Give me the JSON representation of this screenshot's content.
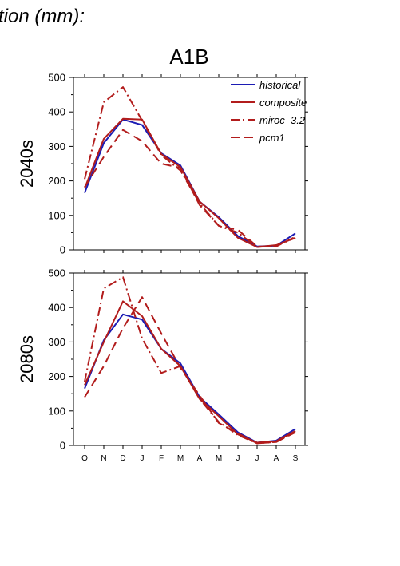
{
  "figure": {
    "header_text": "tion (mm):",
    "scenario_title": "A1B"
  },
  "chart_data": [
    {
      "type": "line",
      "panel_label": "2040s",
      "categories": [
        "O",
        "N",
        "D",
        "J",
        "F",
        "M",
        "A",
        "M",
        "J",
        "J",
        "A",
        "S"
      ],
      "ylim": [
        0,
        500
      ],
      "yticks": [
        0,
        100,
        200,
        300,
        400,
        500
      ],
      "grid": false,
      "legend_position": "top-right",
      "series": [
        {
          "name": "historical",
          "color": "#1c1cb4",
          "dash": "solid",
          "values": [
            165,
            310,
            378,
            362,
            280,
            245,
            140,
            95,
            40,
            10,
            12,
            48
          ]
        },
        {
          "name": "composite",
          "color": "#b21c1c",
          "dash": "solid",
          "values": [
            178,
            322,
            380,
            378,
            278,
            240,
            140,
            92,
            35,
            8,
            14,
            35
          ]
        },
        {
          "name": "miroc_3.2",
          "color": "#b21c1c",
          "dash": "dashdot",
          "values": [
            205,
            428,
            472,
            375,
            275,
            230,
            135,
            70,
            50,
            8,
            12,
            35
          ]
        },
        {
          "name": "pcm1",
          "color": "#b21c1c",
          "dash": "dash",
          "values": [
            182,
            270,
            348,
            315,
            250,
            238,
            130,
            70,
            58,
            10,
            10,
            38
          ]
        }
      ]
    },
    {
      "type": "line",
      "panel_label": "2080s",
      "categories": [
        "O",
        "N",
        "D",
        "J",
        "F",
        "M",
        "A",
        "M",
        "J",
        "J",
        "A",
        "S"
      ],
      "xlabels": [
        "O",
        "N",
        "D",
        "J",
        "F",
        "M",
        "A",
        "M",
        "J",
        "J",
        "A",
        "S"
      ],
      "ylim": [
        0,
        500
      ],
      "yticks": [
        0,
        100,
        200,
        300,
        400,
        500
      ],
      "grid": false,
      "series": [
        {
          "name": "historical",
          "color": "#1c1cb4",
          "dash": "solid",
          "values": [
            165,
            305,
            380,
            365,
            280,
            238,
            140,
            90,
            38,
            8,
            14,
            48
          ]
        },
        {
          "name": "composite",
          "color": "#b21c1c",
          "dash": "solid",
          "values": [
            175,
            300,
            418,
            375,
            280,
            230,
            135,
            85,
            32,
            8,
            12,
            42
          ]
        },
        {
          "name": "miroc_3.2",
          "color": "#b21c1c",
          "dash": "dashdot",
          "values": [
            185,
            455,
            488,
            310,
            210,
            230,
            135,
            68,
            30,
            6,
            10,
            40
          ]
        },
        {
          "name": "pcm1",
          "color": "#b21c1c",
          "dash": "dash",
          "values": [
            140,
            230,
            340,
            430,
            325,
            225,
            145,
            65,
            35,
            6,
            10,
            38
          ]
        }
      ]
    }
  ]
}
